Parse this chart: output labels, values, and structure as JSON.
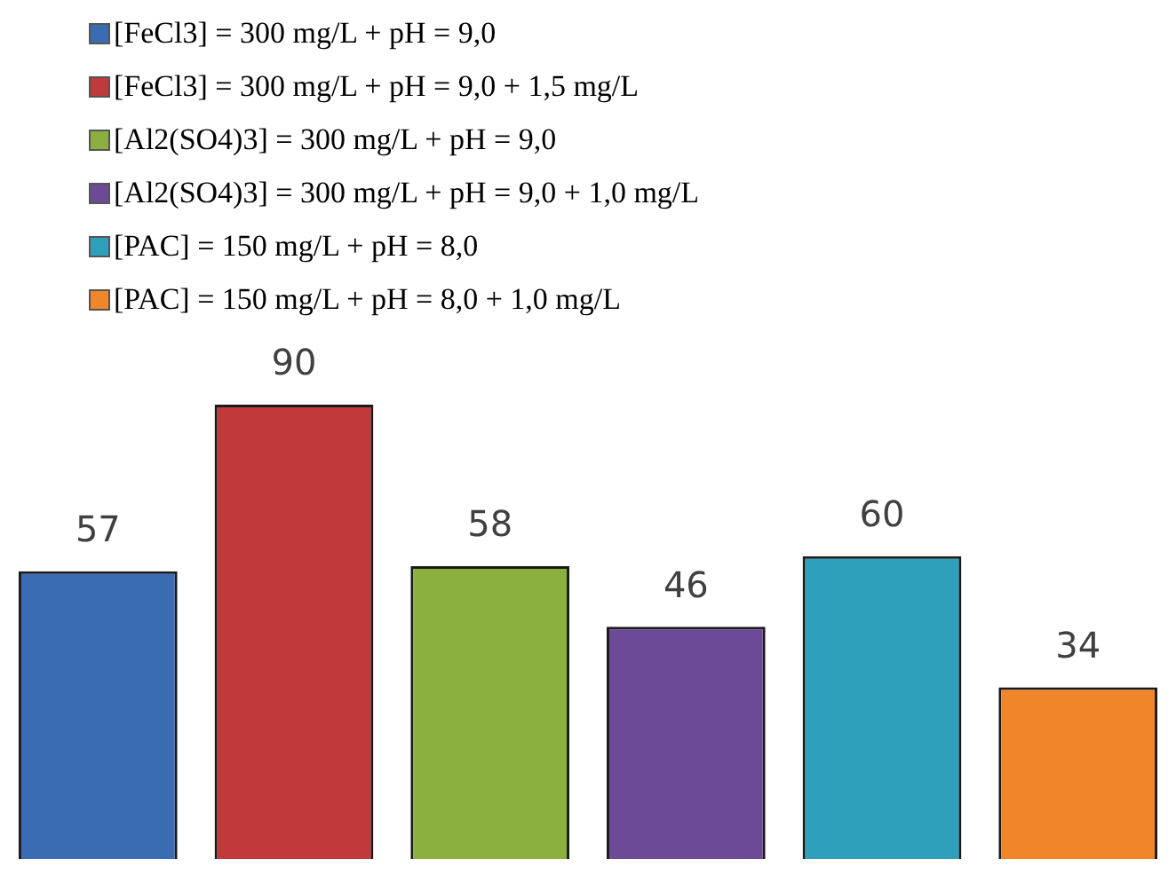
{
  "chart_data": {
    "type": "bar",
    "categories": [
      null
    ],
    "legend": "top",
    "data_labels": true,
    "series": [
      {
        "name": "[FeCl3] = 300 mg/L + pH = 9,0",
        "color": "#3a6cb4",
        "values": [
          57
        ]
      },
      {
        "name": "[FeCl3] = 300 mg/L + pH = 9,0 + 1,5 mg/L",
        "color": "#c0393b",
        "values": [
          90
        ]
      },
      {
        "name": "[Al2(SO4)3] = 300 mg/L + pH = 9,0",
        "color": "#8cb040",
        "values": [
          58
        ]
      },
      {
        "name": "[Al2(SO4)3] = 300 mg/L + pH = 9,0 + 1,0 mg/L",
        "color": "#6c4a96",
        "values": [
          46
        ]
      },
      {
        "name": "[PAC] = 150 mg/L + pH = 8,0",
        "color": "#2fa0bc",
        "values": [
          60
        ]
      },
      {
        "name": "[PAC] = 150 mg/L + pH = 8,0 + 1,0 mg/L",
        "color": "#f0852a",
        "values": [
          34
        ]
      }
    ]
  }
}
